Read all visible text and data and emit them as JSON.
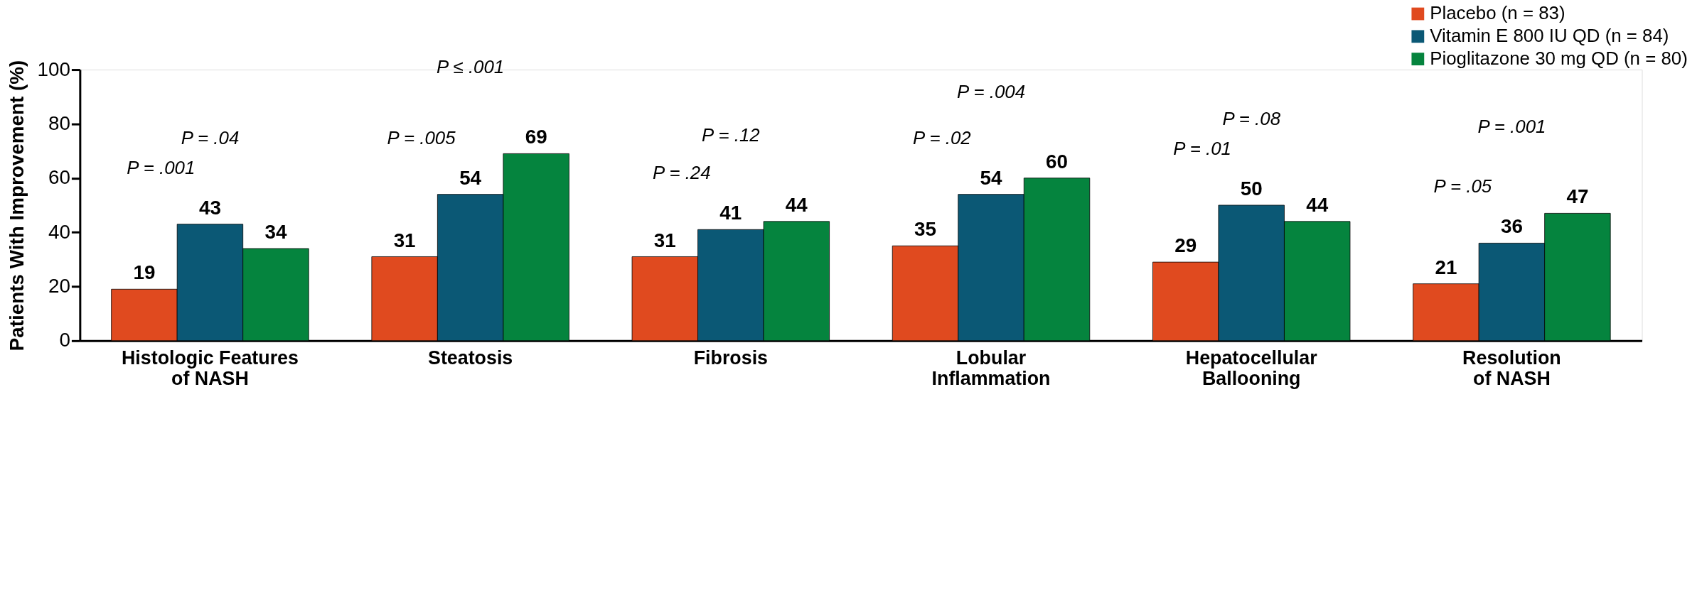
{
  "chart_data": {
    "type": "bar",
    "ylabel": "Patients With Improvement (%)",
    "categories": [
      "Histologic Features\nof NASH",
      "Steatosis",
      "Fibrosis",
      "Lobular\nInflammation",
      "Hepatocellular\nBallooning",
      "Resolution\nof NASH"
    ],
    "series": [
      {
        "name": "Placebo (n = 83)",
        "color": "#e04a1f",
        "values": [
          19,
          31,
          31,
          35,
          29,
          21
        ]
      },
      {
        "name": "Vitamin E 800 IU QD (n = 84)",
        "color": "#0b5875",
        "values": [
          43,
          54,
          41,
          54,
          50,
          36
        ]
      },
      {
        "name": "Pioglitazone 30 mg QD (n = 80)",
        "color": "#05843e",
        "values": [
          34,
          69,
          44,
          60,
          44,
          47
        ]
      }
    ],
    "ylim": [
      0,
      100
    ],
    "yticks": [
      0,
      20,
      40,
      60,
      80,
      100
    ],
    "grid": false,
    "legend": "top right",
    "data_labels": true,
    "annotations": [
      "P = .001",
      "P = .04",
      "P = .005",
      "P ≤ .001",
      "P = .24",
      "P = .12",
      "P = .02",
      "P = .004",
      "P = .01",
      "P = .08",
      "P = .05",
      "P = .001"
    ]
  }
}
